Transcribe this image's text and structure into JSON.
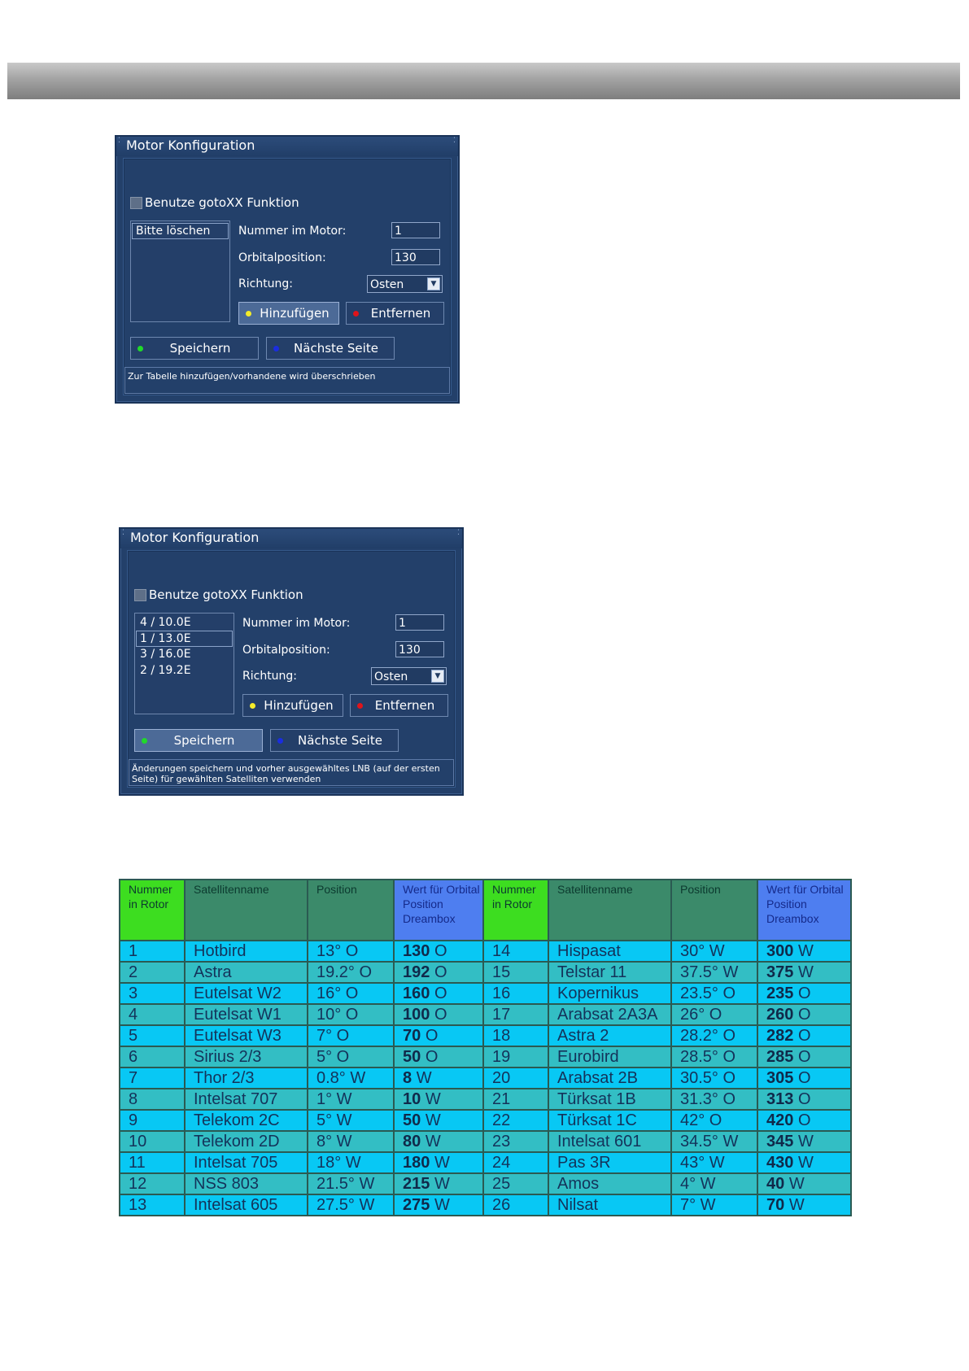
{
  "dialogs": [
    {
      "title": "Motor Konfiguration",
      "checkbox_label": "Benutze gotoXX Funktion",
      "list_items": [
        "Bitte löschen"
      ],
      "selected_index": 0,
      "fields": {
        "nummer_label": "Nummer im Motor:",
        "nummer_value": "1",
        "orbital_label": "Orbitalposition:",
        "orbital_value": "130",
        "richtung_label": "Richtung:",
        "richtung_value": "Osten"
      },
      "buttons": {
        "add": "Hinzufügen",
        "remove": "Entfernen",
        "save": "Speichern",
        "next": "Nächste Seite"
      },
      "focused_button": "add",
      "status": "Zur Tabelle hinzufügen/vorhandene wird überschrieben"
    },
    {
      "title": "Motor Konfiguration",
      "checkbox_label": "Benutze gotoXX Funktion",
      "list_items": [
        "4 / 10.0E",
        "1 / 13.0E",
        "3 / 16.0E",
        "2 / 19.2E"
      ],
      "selected_index": 1,
      "fields": {
        "nummer_label": "Nummer im Motor:",
        "nummer_value": "1",
        "orbital_label": "Orbitalposition:",
        "orbital_value": "130",
        "richtung_label": "Richtung:",
        "richtung_value": "Osten"
      },
      "buttons": {
        "add": "Hinzufügen",
        "remove": "Entfernen",
        "save": "Speichern",
        "next": "Nächste Seite"
      },
      "focused_button": "save",
      "status": "Änderungen speichern und vorher ausgewähltes LNB (auf der ersten Seite) für gewählten Satelliten verwenden"
    }
  ],
  "dot_colors": {
    "add": "#f4ec2a",
    "remove": "#e0141a",
    "save": "#21d92a",
    "next": "#1a2de0"
  },
  "table": {
    "headers": {
      "num": "Nummer in Rotor",
      "name": "Satellitenname",
      "pos": "Position",
      "val": "Wert für Orbital Position Dreambox"
    },
    "rows": [
      [
        {
          "num": "1",
          "name": "Hotbird",
          "pos": "13° O",
          "val": "130",
          "dir": "O"
        },
        {
          "num": "14",
          "name": "Hispasat",
          "pos": "30° W",
          "val": "300",
          "dir": "W"
        }
      ],
      [
        {
          "num": "2",
          "name": "Astra",
          "pos": "19.2° O",
          "val": "192",
          "dir": "O"
        },
        {
          "num": "15",
          "name": "Telstar 11",
          "pos": "37.5° W",
          "val": "375",
          "dir": "W"
        }
      ],
      [
        {
          "num": "3",
          "name": "Eutelsat W2",
          "pos": "16° O",
          "val": "160",
          "dir": "O"
        },
        {
          "num": "16",
          "name": "Kopernikus",
          "pos": "23.5° O",
          "val": "235",
          "dir": "O"
        }
      ],
      [
        {
          "num": "4",
          "name": "Eutelsat W1",
          "pos": "10° O",
          "val": "100",
          "dir": "O"
        },
        {
          "num": "17",
          "name": "Arabsat 2A3A",
          "pos": "26° O",
          "val": "260",
          "dir": "O"
        }
      ],
      [
        {
          "num": "5",
          "name": "Eutelsat W3",
          "pos": "7° O",
          "val": "70",
          "dir": "O"
        },
        {
          "num": "18",
          "name": "Astra 2",
          "pos": "28.2° O",
          "val": "282",
          "dir": "O"
        }
      ],
      [
        {
          "num": "6",
          "name": "Sirius 2/3",
          "pos": "5° O",
          "val": "50",
          "dir": "O"
        },
        {
          "num": "19",
          "name": "Eurobird",
          "pos": "28.5° O",
          "val": "285",
          "dir": "O"
        }
      ],
      [
        {
          "num": "7",
          "name": "Thor 2/3",
          "pos": "0.8° W",
          "val": "8",
          "dir": "W"
        },
        {
          "num": "20",
          "name": "Arabsat 2B",
          "pos": "30.5° O",
          "val": "305",
          "dir": "O"
        }
      ],
      [
        {
          "num": "8",
          "name": "Intelsat 707",
          "pos": "1° W",
          "val": "10",
          "dir": "W"
        },
        {
          "num": "21",
          "name": "Türksat 1B",
          "pos": "31.3° O",
          "val": "313",
          "dir": "O"
        }
      ],
      [
        {
          "num": "9",
          "name": "Telekom 2C",
          "pos": "5° W",
          "val": "50",
          "dir": "W"
        },
        {
          "num": "22",
          "name": "Türksat 1C",
          "pos": "42° O",
          "val": "420",
          "dir": "O"
        }
      ],
      [
        {
          "num": "10",
          "name": "Telekom 2D",
          "pos": "8° W",
          "val": "80",
          "dir": "W"
        },
        {
          "num": "23",
          "name": "Intelsat 601",
          "pos": "34.5° W",
          "val": "345",
          "dir": "W"
        }
      ],
      [
        {
          "num": "11",
          "name": "Intelsat 705",
          "pos": "18° W",
          "val": "180",
          "dir": "W"
        },
        {
          "num": "24",
          "name": "Pas 3R",
          "pos": "43° W",
          "val": "430",
          "dir": "W"
        }
      ],
      [
        {
          "num": "12",
          "name": "NSS 803",
          "pos": "21.5° W",
          "val": "215",
          "dir": "W"
        },
        {
          "num": "25",
          "name": "Amos",
          "pos": "4° W",
          "val": "40",
          "dir": "W"
        }
      ],
      [
        {
          "num": "13",
          "name": "Intelsat 605",
          "pos": "27.5° W",
          "val": "275",
          "dir": "W"
        },
        {
          "num": "26",
          "name": "Nilsat",
          "pos": "7° W",
          "val": "70",
          "dir": "W"
        }
      ]
    ]
  }
}
